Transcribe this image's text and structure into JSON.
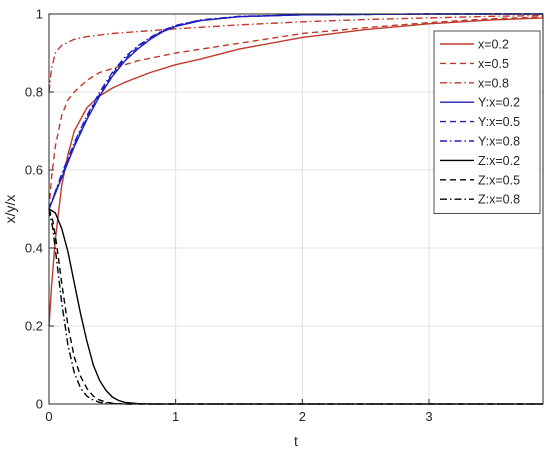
{
  "chart_data": {
    "type": "line",
    "xlabel": "t",
    "ylabel": "x/y/x",
    "xlim": [
      0,
      3.9
    ],
    "ylim": [
      0,
      1
    ],
    "x_ticks": [
      0,
      1,
      2,
      3
    ],
    "y_ticks": [
      0,
      0.2,
      0.4,
      0.6,
      0.8,
      1
    ],
    "x_tick_labels": [
      "0",
      "1",
      "2",
      "3"
    ],
    "y_tick_labels": [
      "0",
      "0.2",
      "0.4",
      "0.6",
      "0.8",
      "1"
    ],
    "grid": true,
    "legend_position": "top-right",
    "series": [
      {
        "name": "x=0.2",
        "color": "#c0392b",
        "dash": "solid",
        "x": [
          0,
          0.02,
          0.05,
          0.1,
          0.15,
          0.2,
          0.3,
          0.4,
          0.5,
          0.6,
          0.8,
          1.0,
          1.2,
          1.5,
          2.0,
          2.5,
          3.0,
          3.5,
          3.9
        ],
        "y": [
          0.2,
          0.3,
          0.42,
          0.56,
          0.64,
          0.7,
          0.76,
          0.79,
          0.81,
          0.825,
          0.85,
          0.87,
          0.885,
          0.91,
          0.94,
          0.96,
          0.975,
          0.985,
          0.99
        ]
      },
      {
        "name": "x=0.5",
        "color": "#c0392b",
        "dash": "dashed",
        "x": [
          0,
          0.02,
          0.05,
          0.1,
          0.15,
          0.2,
          0.3,
          0.4,
          0.5,
          0.7,
          1.0,
          1.5,
          2.0,
          2.5,
          3.0,
          3.5,
          3.9
        ],
        "y": [
          0.5,
          0.58,
          0.66,
          0.74,
          0.78,
          0.8,
          0.83,
          0.85,
          0.86,
          0.88,
          0.9,
          0.925,
          0.95,
          0.965,
          0.978,
          0.988,
          0.992
        ]
      },
      {
        "name": "x=0.8",
        "color": "#c0392b",
        "dash": "dashdot",
        "x": [
          0,
          0.02,
          0.05,
          0.1,
          0.2,
          0.3,
          0.5,
          0.7,
          1.0,
          1.5,
          2.0,
          2.5,
          3.0,
          3.5,
          3.9
        ],
        "y": [
          0.8,
          0.86,
          0.9,
          0.92,
          0.935,
          0.942,
          0.95,
          0.955,
          0.962,
          0.972,
          0.98,
          0.986,
          0.99,
          0.994,
          0.996
        ]
      },
      {
        "name": "Y:x=0.2",
        "color": "#1f1fbf",
        "dash": "solid",
        "x": [
          0,
          0.1,
          0.2,
          0.3,
          0.4,
          0.5,
          0.6,
          0.7,
          0.8,
          0.9,
          1.0,
          1.2,
          1.5,
          2.0,
          2.5,
          3.0,
          3.9
        ],
        "y": [
          0.5,
          0.58,
          0.66,
          0.73,
          0.79,
          0.84,
          0.88,
          0.91,
          0.935,
          0.955,
          0.968,
          0.983,
          0.993,
          0.998,
          0.999,
          1.0,
          1.0
        ]
      },
      {
        "name": "Y:x=0.5",
        "color": "#1f1fbf",
        "dash": "dashed",
        "x": [
          0,
          0.1,
          0.2,
          0.3,
          0.4,
          0.5,
          0.6,
          0.7,
          0.8,
          0.9,
          1.0,
          1.2,
          1.5,
          2.0,
          2.5,
          3.0,
          3.9
        ],
        "y": [
          0.5,
          0.585,
          0.665,
          0.735,
          0.795,
          0.845,
          0.885,
          0.915,
          0.938,
          0.957,
          0.97,
          0.984,
          0.993,
          0.998,
          0.999,
          1.0,
          1.0
        ]
      },
      {
        "name": "Y:x=0.8",
        "color": "#1f1fbf",
        "dash": "dashdot",
        "x": [
          0,
          0.1,
          0.2,
          0.3,
          0.4,
          0.5,
          0.6,
          0.7,
          0.8,
          0.9,
          1.0,
          1.2,
          1.5,
          2.0,
          2.5,
          3.0,
          3.9
        ],
        "y": [
          0.5,
          0.59,
          0.67,
          0.74,
          0.8,
          0.85,
          0.89,
          0.918,
          0.94,
          0.958,
          0.971,
          0.985,
          0.994,
          0.998,
          0.999,
          1.0,
          1.0
        ]
      },
      {
        "name": "Z:x=0.2",
        "color": "#000000",
        "dash": "solid",
        "x": [
          0,
          0.05,
          0.1,
          0.15,
          0.2,
          0.25,
          0.3,
          0.35,
          0.4,
          0.45,
          0.5,
          0.55,
          0.6,
          0.7,
          0.8,
          1.0,
          3.9
        ],
        "y": [
          0.5,
          0.49,
          0.45,
          0.39,
          0.31,
          0.23,
          0.16,
          0.1,
          0.06,
          0.035,
          0.018,
          0.009,
          0.004,
          0.001,
          0,
          0,
          0
        ]
      },
      {
        "name": "Z:x=0.5",
        "color": "#000000",
        "dash": "dashed",
        "x": [
          0,
          0.03,
          0.06,
          0.1,
          0.15,
          0.2,
          0.25,
          0.3,
          0.35,
          0.4,
          0.45,
          0.5,
          0.6,
          0.8,
          3.9
        ],
        "y": [
          0.5,
          0.47,
          0.41,
          0.31,
          0.2,
          0.12,
          0.07,
          0.04,
          0.02,
          0.01,
          0.005,
          0.002,
          0,
          0,
          0
        ]
      },
      {
        "name": "Z:x=0.8",
        "color": "#000000",
        "dash": "dashdot",
        "x": [
          0,
          0.03,
          0.06,
          0.1,
          0.15,
          0.2,
          0.25,
          0.3,
          0.35,
          0.4,
          0.5,
          0.6,
          0.8,
          3.9
        ],
        "y": [
          0.5,
          0.45,
          0.37,
          0.26,
          0.15,
          0.08,
          0.04,
          0.02,
          0.01,
          0.004,
          0.001,
          0,
          0,
          0
        ]
      }
    ]
  }
}
